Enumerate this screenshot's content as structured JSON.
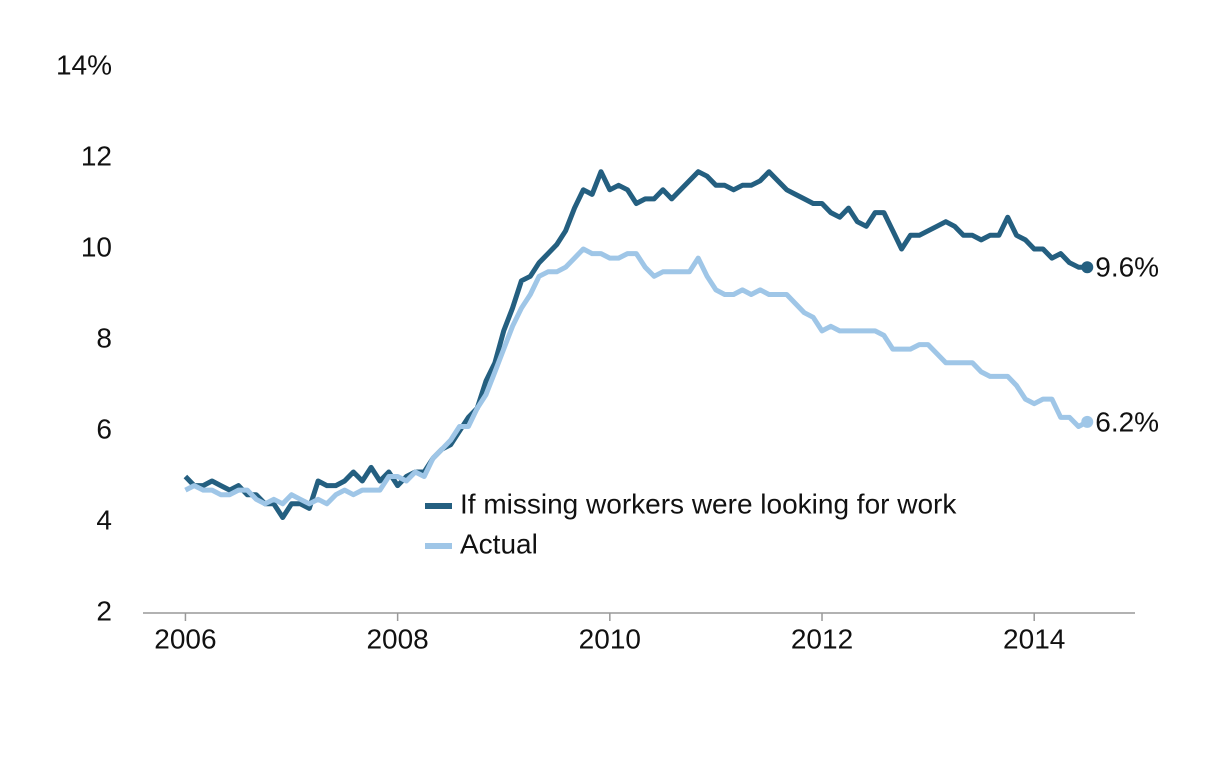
{
  "chart_data": {
    "type": "line",
    "x": [
      2006,
      2006.083,
      2006.167,
      2006.25,
      2006.333,
      2006.417,
      2006.5,
      2006.583,
      2006.667,
      2006.75,
      2006.833,
      2006.917,
      2007,
      2007.083,
      2007.167,
      2007.25,
      2007.333,
      2007.417,
      2007.5,
      2007.583,
      2007.667,
      2007.75,
      2007.833,
      2007.917,
      2008,
      2008.083,
      2008.167,
      2008.25,
      2008.333,
      2008.417,
      2008.5,
      2008.583,
      2008.667,
      2008.75,
      2008.833,
      2008.917,
      2009,
      2009.083,
      2009.167,
      2009.25,
      2009.333,
      2009.417,
      2009.5,
      2009.583,
      2009.667,
      2009.75,
      2009.833,
      2009.917,
      2010,
      2010.083,
      2010.167,
      2010.25,
      2010.333,
      2010.417,
      2010.5,
      2010.583,
      2010.667,
      2010.75,
      2010.833,
      2010.917,
      2011,
      2011.083,
      2011.167,
      2011.25,
      2011.333,
      2011.417,
      2011.5,
      2011.583,
      2011.667,
      2011.75,
      2011.833,
      2011.917,
      2012,
      2012.083,
      2012.167,
      2012.25,
      2012.333,
      2012.417,
      2012.5,
      2012.583,
      2012.667,
      2012.75,
      2012.833,
      2012.917,
      2013,
      2013.083,
      2013.167,
      2013.25,
      2013.333,
      2013.417,
      2013.5,
      2013.583,
      2013.667,
      2013.75,
      2013.833,
      2013.917,
      2014,
      2014.083,
      2014.167,
      2014.25,
      2014.333,
      2014.417,
      2014.5
    ],
    "series": [
      {
        "name": "If missing workers were looking for work",
        "color": "#245f80",
        "values": [
          5.0,
          4.8,
          4.8,
          4.9,
          4.8,
          4.7,
          4.8,
          4.6,
          4.6,
          4.4,
          4.4,
          4.1,
          4.4,
          4.4,
          4.3,
          4.9,
          4.8,
          4.8,
          4.9,
          5.1,
          4.9,
          5.2,
          4.9,
          5.1,
          4.8,
          5.0,
          5.1,
          5.1,
          5.4,
          5.6,
          5.7,
          6.0,
          6.3,
          6.5,
          7.1,
          7.5,
          8.2,
          8.7,
          9.3,
          9.4,
          9.7,
          9.9,
          10.1,
          10.4,
          10.9,
          11.3,
          11.2,
          11.7,
          11.3,
          11.4,
          11.3,
          11.0,
          11.1,
          11.1,
          11.3,
          11.1,
          11.3,
          11.5,
          11.7,
          11.6,
          11.4,
          11.4,
          11.3,
          11.4,
          11.4,
          11.5,
          11.7,
          11.5,
          11.3,
          11.2,
          11.1,
          11.0,
          11.0,
          10.8,
          10.7,
          10.9,
          10.6,
          10.5,
          10.8,
          10.8,
          10.4,
          10.0,
          10.3,
          10.3,
          10.4,
          10.5,
          10.6,
          10.5,
          10.3,
          10.3,
          10.2,
          10.3,
          10.3,
          10.7,
          10.3,
          10.2,
          10.0,
          10.0,
          9.8,
          9.9,
          9.7,
          9.6,
          9.6
        ],
        "value_labels": [
          null,
          null,
          null,
          null,
          null,
          null,
          null,
          null,
          null,
          null,
          null,
          null,
          null,
          null,
          null,
          null,
          null,
          null,
          null,
          null,
          null,
          null,
          null,
          null,
          null,
          null,
          null,
          null,
          null,
          null,
          null,
          null,
          null,
          null,
          null,
          null,
          null,
          null,
          null,
          null,
          null,
          null,
          null,
          null,
          null,
          null,
          null,
          null,
          null,
          null,
          null,
          null,
          null,
          null,
          null,
          null,
          null,
          null,
          null,
          null,
          null,
          null,
          null,
          null,
          null,
          null,
          null,
          null,
          null,
          null,
          null,
          null,
          null,
          null,
          null,
          null,
          null,
          null,
          null,
          null,
          null,
          null,
          null,
          null,
          null,
          null,
          null,
          null,
          null,
          null,
          null,
          null,
          null,
          null,
          null,
          null,
          null,
          null,
          null,
          null,
          null,
          null,
          "9.6%"
        ]
      },
      {
        "name": "Actual",
        "color": "#9fc6e7",
        "values": [
          4.7,
          4.8,
          4.7,
          4.7,
          4.6,
          4.6,
          4.7,
          4.7,
          4.5,
          4.4,
          4.5,
          4.4,
          4.6,
          4.5,
          4.4,
          4.5,
          4.4,
          4.6,
          4.7,
          4.6,
          4.7,
          4.7,
          4.7,
          5.0,
          5.0,
          4.9,
          5.1,
          5.0,
          5.4,
          5.6,
          5.8,
          6.1,
          6.1,
          6.5,
          6.8,
          7.3,
          7.8,
          8.3,
          8.7,
          9.0,
          9.4,
          9.5,
          9.5,
          9.6,
          9.8,
          10.0,
          9.9,
          9.9,
          9.8,
          9.8,
          9.9,
          9.9,
          9.6,
          9.4,
          9.5,
          9.5,
          9.5,
          9.5,
          9.8,
          9.4,
          9.1,
          9.0,
          9.0,
          9.1,
          9.0,
          9.1,
          9.0,
          9.0,
          9.0,
          8.8,
          8.6,
          8.5,
          8.2,
          8.3,
          8.2,
          8.2,
          8.2,
          8.2,
          8.2,
          8.1,
          7.8,
          7.8,
          7.8,
          7.9,
          7.9,
          7.7,
          7.5,
          7.5,
          7.5,
          7.5,
          7.3,
          7.2,
          7.2,
          7.2,
          7.0,
          6.7,
          6.6,
          6.7,
          6.7,
          6.3,
          6.3,
          6.1,
          6.2
        ],
        "value_labels": [
          null,
          null,
          null,
          null,
          null,
          null,
          null,
          null,
          null,
          null,
          null,
          null,
          null,
          null,
          null,
          null,
          null,
          null,
          null,
          null,
          null,
          null,
          null,
          null,
          null,
          null,
          null,
          null,
          null,
          null,
          null,
          null,
          null,
          null,
          null,
          null,
          null,
          null,
          null,
          null,
          null,
          null,
          null,
          null,
          null,
          null,
          null,
          null,
          null,
          null,
          null,
          null,
          null,
          null,
          null,
          null,
          null,
          null,
          null,
          null,
          null,
          null,
          null,
          null,
          null,
          null,
          null,
          null,
          null,
          null,
          null,
          null,
          null,
          null,
          null,
          null,
          null,
          null,
          null,
          null,
          null,
          null,
          null,
          null,
          null,
          null,
          null,
          null,
          null,
          null,
          null,
          null,
          null,
          null,
          null,
          null,
          null,
          null,
          null,
          null,
          null,
          null,
          "6.2%"
        ]
      }
    ],
    "xlim": [
      2005.6,
      2014.95
    ],
    "xticks": [
      2006,
      2008,
      2010,
      2012,
      2014
    ],
    "ylim": [
      2,
      14
    ],
    "yticks": [
      2,
      4,
      6,
      8,
      10,
      12,
      {
        "value": 14,
        "label": "14%"
      }
    ],
    "grid": false
  }
}
